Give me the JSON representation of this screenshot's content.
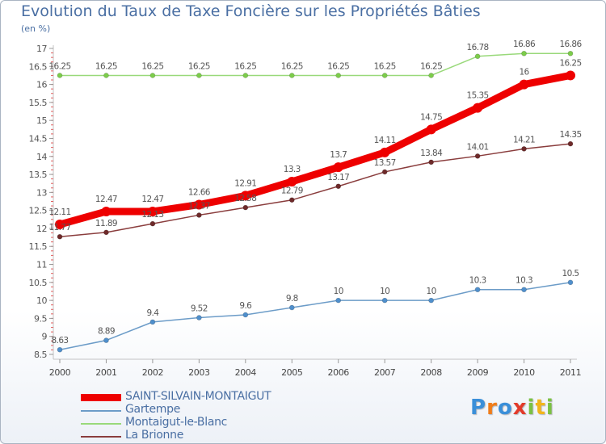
{
  "chart_data": {
    "type": "line",
    "title": "Evolution du Taux de Taxe Foncière sur les Propriétés Bâties",
    "subtitle": "(en %)",
    "x": [
      "2000",
      "2001",
      "2002",
      "2003",
      "2004",
      "2005",
      "2006",
      "2007",
      "2008",
      "2009",
      "2010",
      "2011"
    ],
    "ylim": [
      8.5,
      17
    ],
    "yticks": [
      "8.5",
      "9",
      "9.5",
      "10",
      "10.5",
      "11",
      "11.5",
      "12",
      "12.5",
      "13",
      "13.5",
      "14",
      "14.5",
      "15",
      "15.5",
      "16",
      "16.5",
      "17"
    ],
    "grid": false,
    "series": [
      {
        "name": "SAINT-SILVAIN-MONTAIGUT",
        "color": "#ee0000",
        "width": 9,
        "marker": 6,
        "values": [
          12.11,
          12.47,
          12.47,
          12.66,
          12.91,
          13.3,
          13.7,
          14.11,
          14.75,
          15.35,
          16,
          16.25
        ],
        "labels": [
          "12.11",
          "12.47",
          "12.47",
          "12.66",
          "12.91",
          "13.3",
          "13.7",
          "14.11",
          "14.75",
          "15.35",
          "16",
          "16.25"
        ]
      },
      {
        "name": "Gartempe",
        "color": "#6c9cc8",
        "marker_color": "#4f8fcc",
        "width": 1.5,
        "marker": 3,
        "values": [
          8.63,
          8.89,
          9.4,
          9.52,
          9.6,
          9.8,
          10,
          10,
          10,
          10.3,
          10.3,
          10.5
        ],
        "labels": [
          "8.63",
          "8.89",
          "9.4",
          "9.52",
          "9.6",
          "9.8",
          "10",
          "10",
          "10",
          "10.3",
          "10.3",
          "10.5"
        ]
      },
      {
        "name": "Montaigut-le-Blanc",
        "color": "#99d97a",
        "marker_color": "#7ccc4a",
        "width": 1.5,
        "marker": 3,
        "values": [
          16.25,
          16.25,
          16.25,
          16.25,
          16.25,
          16.25,
          16.25,
          16.25,
          16.25,
          16.78,
          16.86,
          16.86
        ],
        "labels": [
          "16.25",
          "16.25",
          "16.25",
          "16.25",
          "16.25",
          "16.25",
          "16.25",
          "16.25",
          "16.25",
          "16.78",
          "16.86",
          "16.86"
        ]
      },
      {
        "name": "La Brionne",
        "color": "#8a3d3d",
        "marker_color": "#6e2a2a",
        "width": 1.5,
        "marker": 3,
        "values": [
          11.77,
          11.89,
          12.13,
          12.37,
          12.58,
          12.79,
          13.17,
          13.57,
          13.84,
          14.01,
          14.21,
          14.35
        ],
        "labels": [
          "11.77",
          "11.89",
          "12.13",
          "12.37",
          "12.58",
          "12.79",
          "13.17",
          "13.57",
          "13.84",
          "14.01",
          "14.21",
          "14.35"
        ]
      }
    ]
  },
  "legend": [
    {
      "label": "SAINT-SILVAIN-MONTAIGUT",
      "color": "#ee0000"
    },
    {
      "label": "Gartempe",
      "color": "#6c9cc8"
    },
    {
      "label": "Montaigut-le-Blanc",
      "color": "#99d97a"
    },
    {
      "label": "La Brionne",
      "color": "#8a3d3d"
    }
  ],
  "logo": {
    "letters": [
      "P",
      "r",
      "o",
      "x",
      "i",
      "t",
      "i"
    ],
    "colors": [
      "#3a8fd9",
      "#f07d1a",
      "#3a8fd9",
      "#e23a2a",
      "#7bc143",
      "#f2b51b",
      "#7bc143"
    ]
  }
}
